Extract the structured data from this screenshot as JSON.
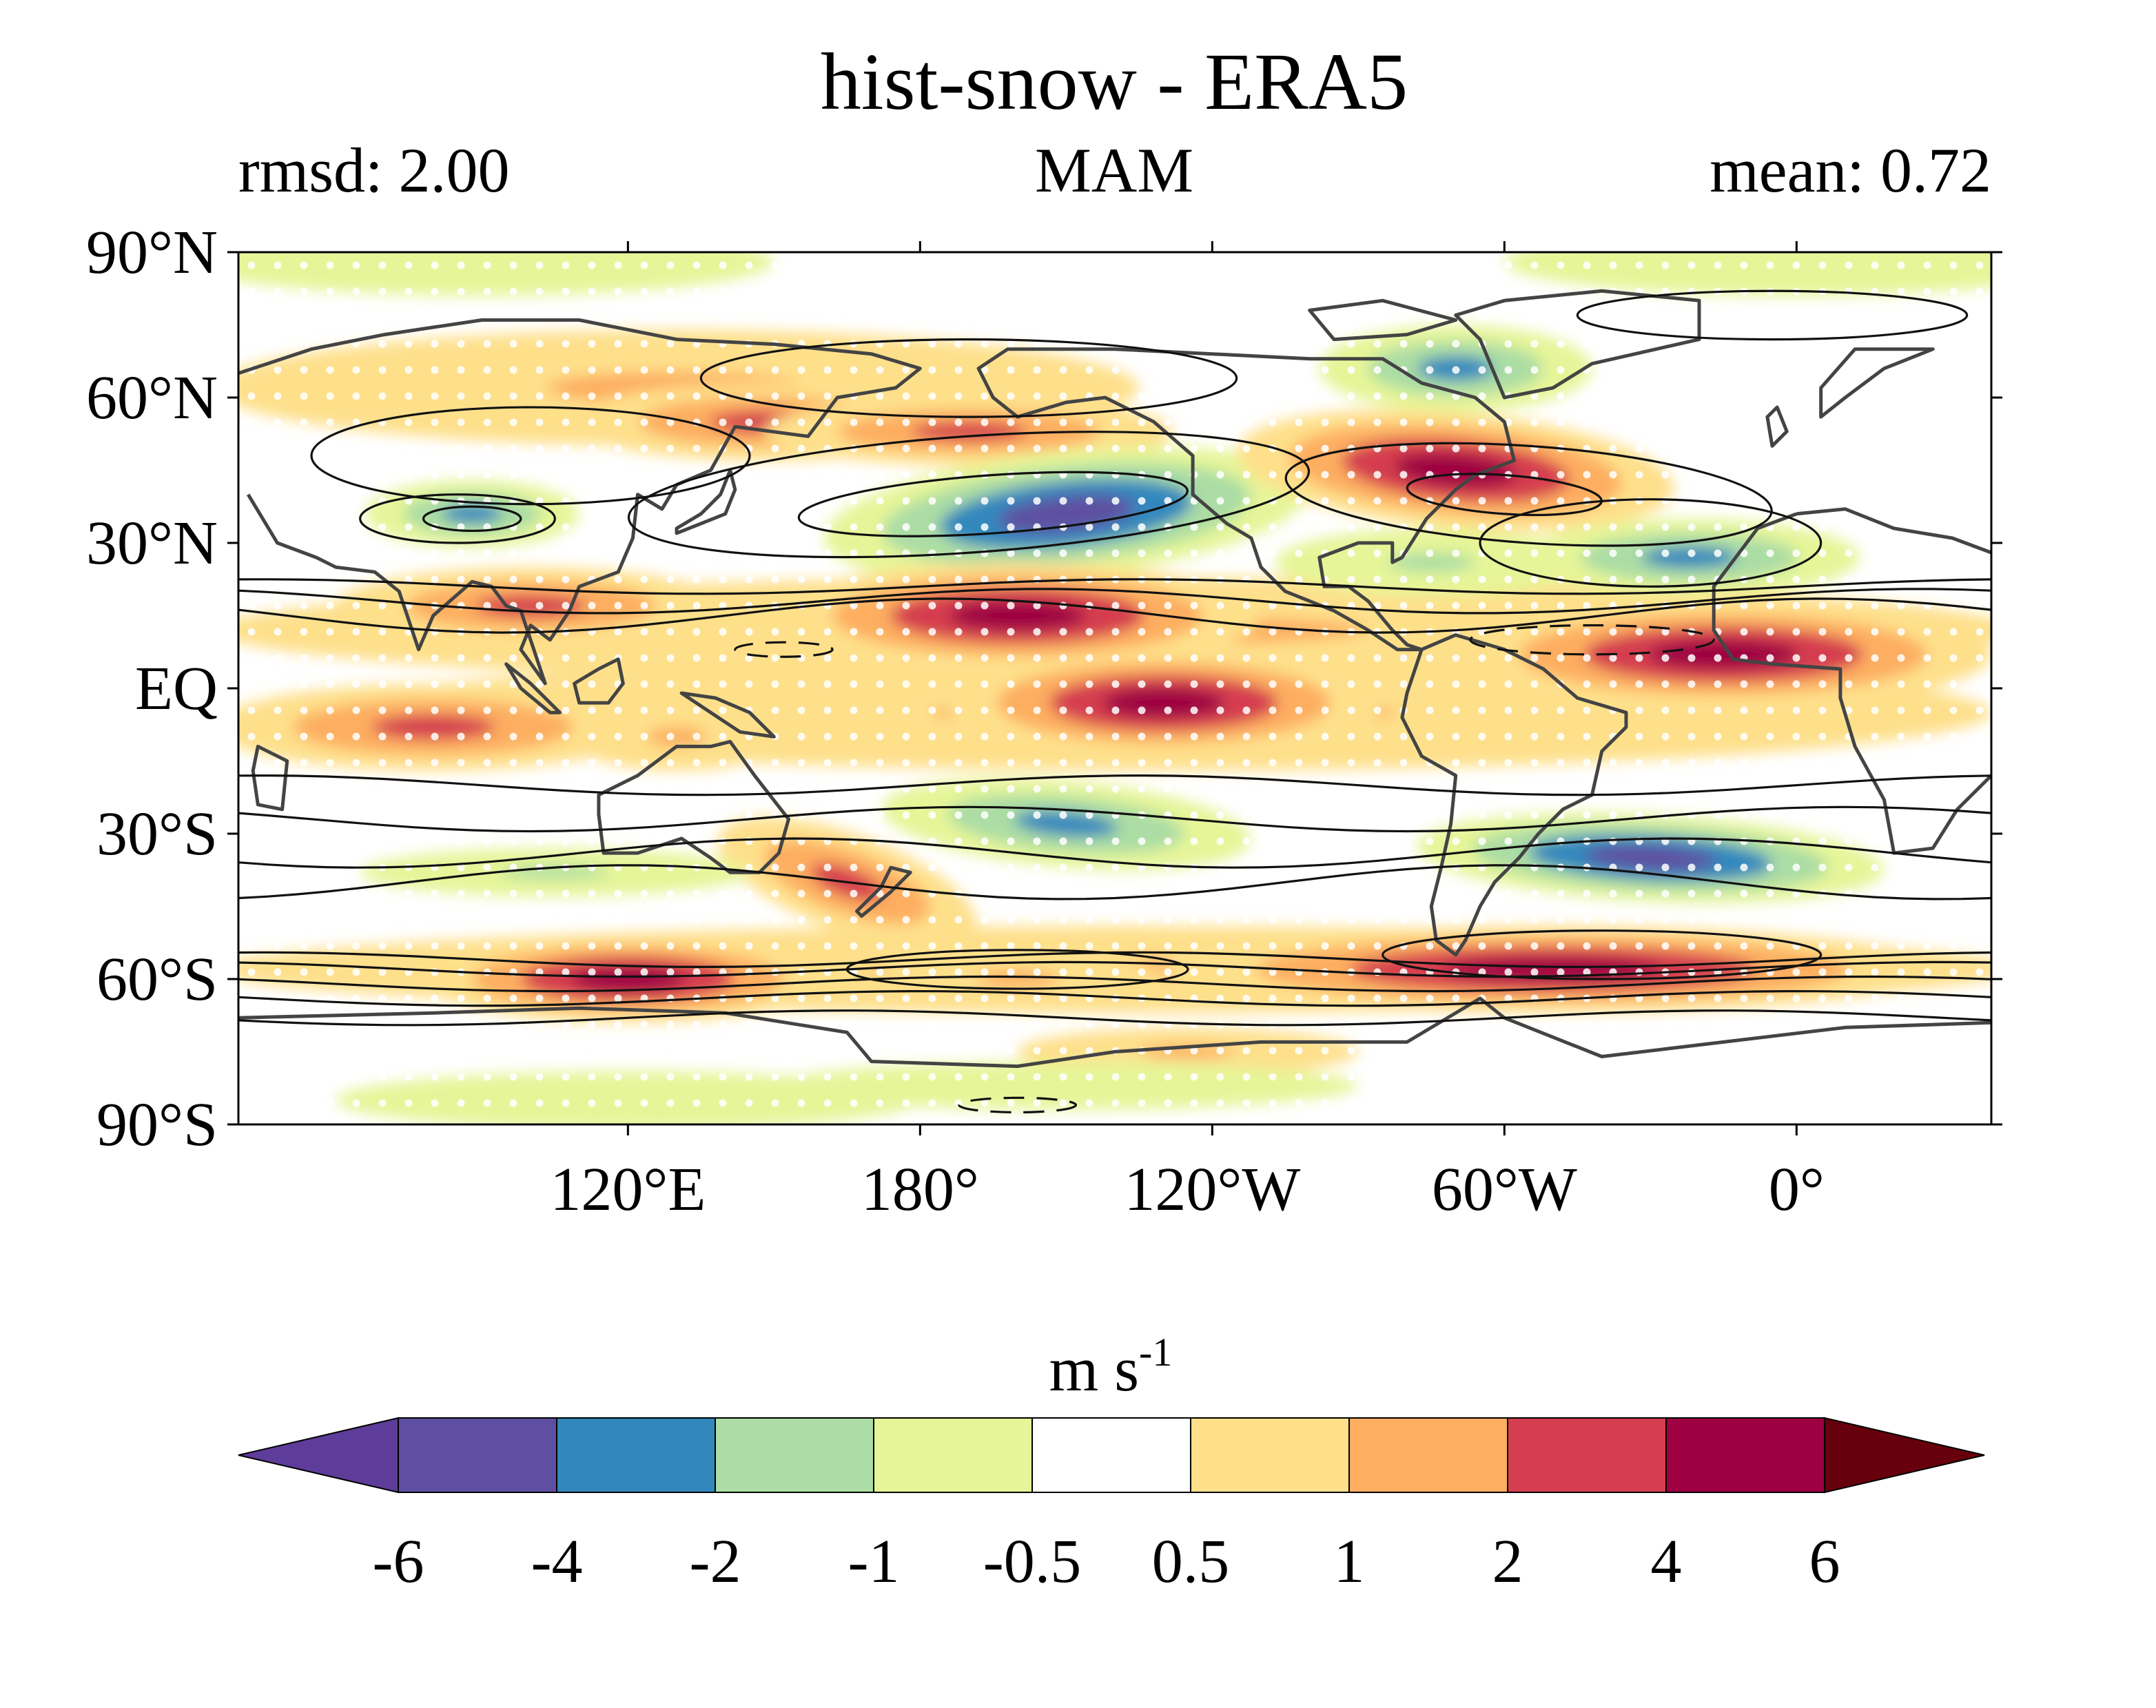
{
  "header": {
    "title": "hist-snow - ERA5",
    "left_label": "rmsd: 2.00",
    "center_label": "MAM",
    "right_label": "mean: 0.72"
  },
  "map": {
    "lat_ticks": [
      "90°N",
      "60°N",
      "30°N",
      "EQ",
      "30°S",
      "60°S",
      "90°S"
    ],
    "lon_ticks": [
      "120°E",
      "180°",
      "120°W",
      "60°W",
      "0°"
    ],
    "lon_range": [
      40,
      400
    ],
    "lat_range": [
      -90,
      90
    ],
    "stippling": true,
    "climatology_contours": true
  },
  "colorbar": {
    "unit": "m s",
    "unit_exponent": "-1",
    "levels": [
      "-6",
      "-4",
      "-2",
      "-1",
      "-0.5",
      "0.5",
      "1",
      "2",
      "4",
      "6"
    ],
    "colors": [
      "#5e3c99",
      "#5e4fa2",
      "#3288bd",
      "#abdda4",
      "#e6f598",
      "#ffffff",
      "#fee08b",
      "#fdae61",
      "#d53e4f",
      "#9e0142",
      "#67000d"
    ],
    "extend": "both"
  }
}
